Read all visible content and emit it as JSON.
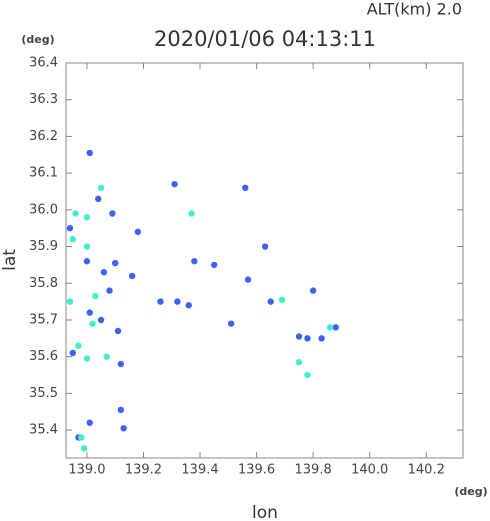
{
  "chart_data": {
    "type": "scatter",
    "title": "2020/01/06 04:13:11",
    "subtitle": "ALT(km) 2.0",
    "x_label": "lon",
    "y_label": "lat",
    "x_unit": "(deg)",
    "y_unit": "(deg)",
    "xlim": [
      138.926,
      140.33
    ],
    "ylim": [
      35.324,
      36.4
    ],
    "xticks": [
      {
        "value": 139,
        "label": "139.0"
      },
      139.2,
      139.4,
      139.6,
      139.8,
      {
        "value": 140,
        "label": "140.0"
      },
      140.2
    ],
    "yticks": [
      35.4,
      35.5,
      35.6,
      35.7,
      35.8,
      35.9,
      {
        "value": 36,
        "label": "36.0"
      },
      36.1,
      36.2,
      36.3,
      36.4
    ],
    "series": [
      {
        "color": "#3d63f5",
        "x": [
          139.01,
          138.94,
          139.0,
          139.09,
          139.04,
          139.18,
          139.1,
          139.06,
          139.16,
          139.26,
          139.32,
          139.36,
          139.38,
          139.45,
          139.57,
          139.56,
          139.63,
          139.51,
          139.65,
          139.8,
          139.78,
          139.83,
          139.88,
          139.12,
          139.01,
          139.12,
          139.13,
          139.01,
          139.05,
          138.95,
          139.08,
          139.11,
          139.31,
          139.75,
          138.97
        ],
        "y": [
          36.155,
          35.95,
          35.86,
          35.99,
          36.03,
          35.94,
          35.855,
          35.83,
          35.82,
          35.75,
          35.75,
          35.74,
          35.86,
          35.85,
          35.81,
          36.06,
          35.9,
          35.69,
          35.75,
          35.78,
          35.65,
          35.65,
          35.68,
          35.58,
          35.42,
          35.455,
          35.405,
          35.72,
          35.7,
          35.61,
          35.78,
          35.67,
          36.07,
          35.655,
          35.38
        ]
      },
      {
        "color": "#3ff0c8",
        "x": [
          139.05,
          138.96,
          139.0,
          138.95,
          139.0,
          138.94,
          139.03,
          138.97,
          139.0,
          139.07,
          139.02,
          139.37,
          139.75,
          139.78,
          139.86,
          138.99,
          138.98,
          139.69
        ],
        "y": [
          36.06,
          35.99,
          35.98,
          35.92,
          35.9,
          35.75,
          35.765,
          35.63,
          35.595,
          35.6,
          35.69,
          35.99,
          35.585,
          35.55,
          35.68,
          35.35,
          35.38,
          35.755
        ]
      }
    ]
  }
}
